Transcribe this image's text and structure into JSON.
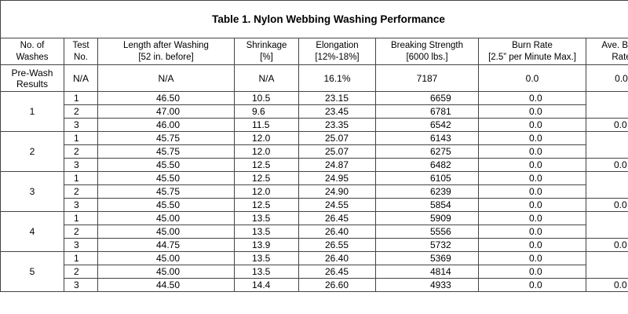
{
  "title": "Table 1.  Nylon Webbing Washing Performance",
  "headers": {
    "washes": [
      "No. of",
      "Washes"
    ],
    "test": [
      "Test",
      "No."
    ],
    "length": [
      "Length after Washing",
      "[52 in. before]"
    ],
    "shrinkage": [
      "Shrinkage",
      "[%]"
    ],
    "elongation": [
      "Elongation",
      "[12%-18%]"
    ],
    "breaking": [
      "Breaking Strength",
      "[6000 lbs.]"
    ],
    "burn": [
      "Burn Rate",
      "[2.5” per Minute Max.]"
    ],
    "ave_burn": [
      "Ave. Burn",
      "Rate"
    ]
  },
  "prewash": {
    "label": [
      "Pre-Wash",
      "Results"
    ],
    "test": "N/A",
    "length": "N/A",
    "shrinkage": "N/A",
    "elongation": "16.1%",
    "breaking": "7187",
    "burn": "0.0",
    "ave_burn": "0.0"
  },
  "groups": [
    {
      "wash": "1",
      "ave_burn": "0.0",
      "rows": [
        {
          "test": "1",
          "length": "46.50",
          "shrinkage": "10.5",
          "elongation": "23.15",
          "breaking": "6659",
          "burn": "0.0"
        },
        {
          "test": "2",
          "length": "47.00",
          "shrinkage": "9.6",
          "elongation": "23.45",
          "breaking": "6781",
          "burn": "0.0"
        },
        {
          "test": "3",
          "length": "46.00",
          "shrinkage": "11.5",
          "elongation": "23.35",
          "breaking": "6542",
          "burn": "0.0"
        }
      ]
    },
    {
      "wash": "2",
      "ave_burn": "0.0",
      "rows": [
        {
          "test": "1",
          "length": "45.75",
          "shrinkage": "12.0",
          "elongation": "25.07",
          "breaking": "6143",
          "burn": "0.0"
        },
        {
          "test": "2",
          "length": "45.75",
          "shrinkage": "12.0",
          "elongation": "25.07",
          "breaking": "6275",
          "burn": "0.0"
        },
        {
          "test": "3",
          "length": "45.50",
          "shrinkage": "12.5",
          "elongation": "24.87",
          "breaking": "6482",
          "burn": "0.0"
        }
      ]
    },
    {
      "wash": "3",
      "ave_burn": "0.0",
      "rows": [
        {
          "test": "1",
          "length": "45.50",
          "shrinkage": "12.5",
          "elongation": "24.95",
          "breaking": "6105",
          "burn": "0.0"
        },
        {
          "test": "2",
          "length": "45.75",
          "shrinkage": "12.0",
          "elongation": "24.90",
          "breaking": "6239",
          "burn": "0.0"
        },
        {
          "test": "3",
          "length": "45.50",
          "shrinkage": "12.5",
          "elongation": "24.55",
          "breaking": "5854",
          "burn": "0.0"
        }
      ]
    },
    {
      "wash": "4",
      "ave_burn": "0.0",
      "rows": [
        {
          "test": "1",
          "length": "45.00",
          "shrinkage": "13.5",
          "elongation": "26.45",
          "breaking": "5909",
          "burn": "0.0"
        },
        {
          "test": "2",
          "length": "45.00",
          "shrinkage": "13.5",
          "elongation": "26.40",
          "breaking": "5556",
          "burn": "0.0"
        },
        {
          "test": "3",
          "length": "44.75",
          "shrinkage": "13.9",
          "elongation": "26.55",
          "breaking": "5732",
          "burn": "0.0"
        }
      ]
    },
    {
      "wash": "5",
      "ave_burn": "0.0",
      "rows": [
        {
          "test": "1",
          "length": "45.00",
          "shrinkage": "13.5",
          "elongation": "26.40",
          "breaking": "5369",
          "burn": "0.0"
        },
        {
          "test": "2",
          "length": "45.00",
          "shrinkage": "13.5",
          "elongation": "26.45",
          "breaking": "4814",
          "burn": "0.0"
        },
        {
          "test": "3",
          "length": "44.50",
          "shrinkage": "14.4",
          "elongation": "26.60",
          "breaking": "4933",
          "burn": "0.0"
        }
      ]
    }
  ]
}
